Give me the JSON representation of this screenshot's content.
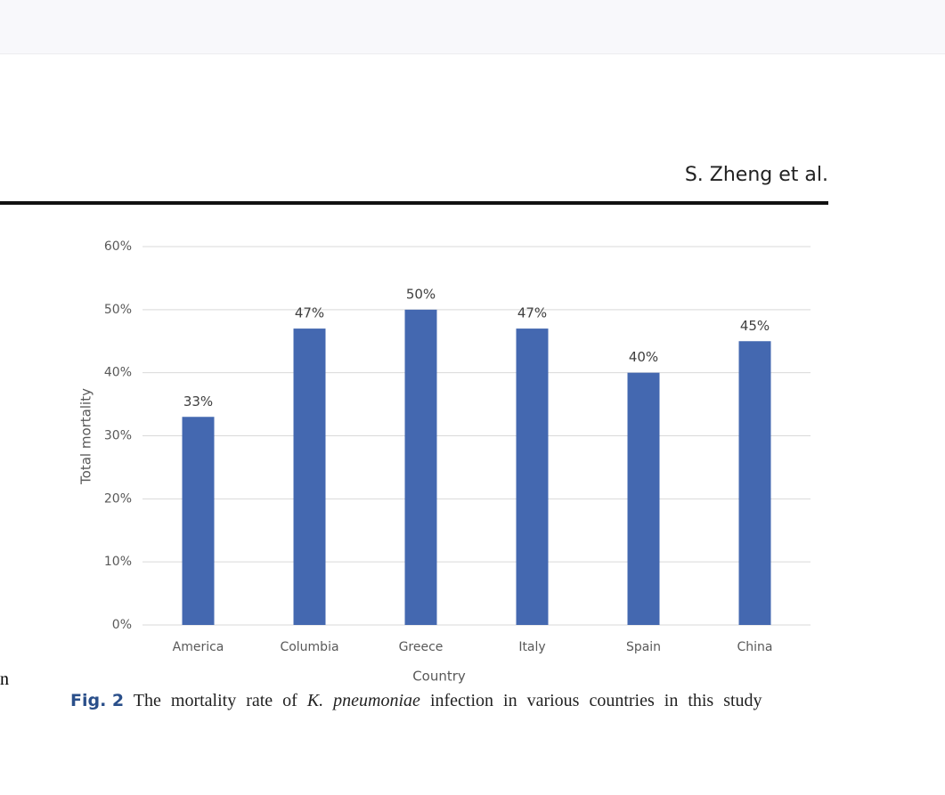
{
  "header": {
    "authors": "S. Zheng et al."
  },
  "margin_fragment": "n",
  "chart_data": {
    "type": "bar",
    "categories": [
      "America",
      "Columbia",
      "Greece",
      "Italy",
      "Spain",
      "China"
    ],
    "values": [
      33,
      47,
      50,
      47,
      40,
      45
    ],
    "value_labels": [
      "33%",
      "47%",
      "50%",
      "47%",
      "40%",
      "45%"
    ],
    "color": "#4468b0",
    "ylim": [
      0,
      60
    ],
    "yticks": [
      {
        "value": 0,
        "label": "0%"
      },
      {
        "value": 10,
        "label": "10%"
      },
      {
        "value": 20,
        "label": "20%"
      },
      {
        "value": 30,
        "label": "30%"
      },
      {
        "value": 40,
        "label": "40%"
      },
      {
        "value": 50,
        "label": "50%"
      },
      {
        "value": 60,
        "label": "60%"
      }
    ],
    "y_label": "Total mortality",
    "x_label": "Country",
    "grid": true
  },
  "caption": {
    "label": "Fig. 2",
    "text_before": "The mortality rate of",
    "species": "K. pneumoniae",
    "text_after": "infection in various countries in this study"
  }
}
